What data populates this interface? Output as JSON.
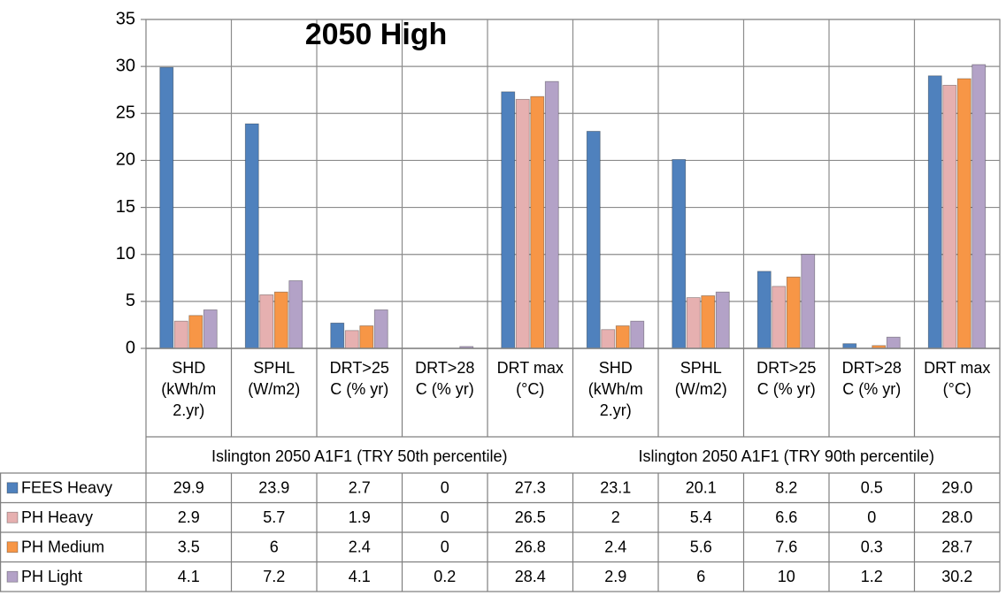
{
  "chart_data": {
    "type": "bar",
    "title": "2050 High",
    "ylim": [
      0,
      35
    ],
    "yticks": [
      0,
      5,
      10,
      15,
      20,
      25,
      30,
      35
    ],
    "grid": true,
    "legend": "table-below",
    "groups": [
      "Islington 2050 A1F1 (TRY 50th percentile)",
      "Islington 2050 A1F1 (TRY 90th percentile)"
    ],
    "categories": [
      [
        "SHD",
        "(kWh/m",
        "2.yr)"
      ],
      [
        "SPHL",
        "(W/m2)"
      ],
      [
        "DRT>25",
        "C (% yr)"
      ],
      [
        "DRT>28",
        "C (% yr)"
      ],
      [
        "DRT max",
        "(°C)"
      ],
      [
        "SHD",
        "(kWh/m",
        "2.yr)"
      ],
      [
        "SPHL",
        "(W/m2)"
      ],
      [
        "DRT>25",
        "C (% yr)"
      ],
      [
        "DRT>28",
        "C  (% yr)"
      ],
      [
        "DRT max",
        "(°C)"
      ]
    ],
    "series": [
      {
        "name": "FEES Heavy",
        "color": "#4F81BD",
        "values": [
          29.9,
          23.9,
          2.7,
          0,
          27.3,
          23.1,
          20.1,
          8.2,
          0.5,
          29.0
        ],
        "labels": [
          "29.9",
          "23.9",
          "2.7",
          "0",
          "27.3",
          "23.1",
          "20.1",
          "8.2",
          "0.5",
          "29.0"
        ]
      },
      {
        "name": "PH Heavy",
        "color": "#E6B0B0",
        "values": [
          2.9,
          5.7,
          1.9,
          0,
          26.5,
          2,
          5.4,
          6.6,
          0,
          28.0
        ],
        "labels": [
          "2.9",
          "5.7",
          "1.9",
          "0",
          "26.5",
          "2",
          "5.4",
          "6.6",
          "0",
          "28.0"
        ]
      },
      {
        "name": "PH Medium",
        "color": "#F79646",
        "values": [
          3.5,
          6,
          2.4,
          0,
          26.8,
          2.4,
          5.6,
          7.6,
          0.3,
          28.7
        ],
        "labels": [
          "3.5",
          "6",
          "2.4",
          "0",
          "26.8",
          "2.4",
          "5.6",
          "7.6",
          "0.3",
          "28.7"
        ]
      },
      {
        "name": "PH Light",
        "color": "#B3A2C7",
        "values": [
          4.1,
          7.2,
          4.1,
          0.2,
          28.4,
          2.9,
          6,
          10,
          1.2,
          30.2
        ],
        "labels": [
          "4.1",
          "7.2",
          "4.1",
          "0.2",
          "28.4",
          "2.9",
          "6",
          "10",
          "1.2",
          "30.2"
        ]
      }
    ]
  }
}
